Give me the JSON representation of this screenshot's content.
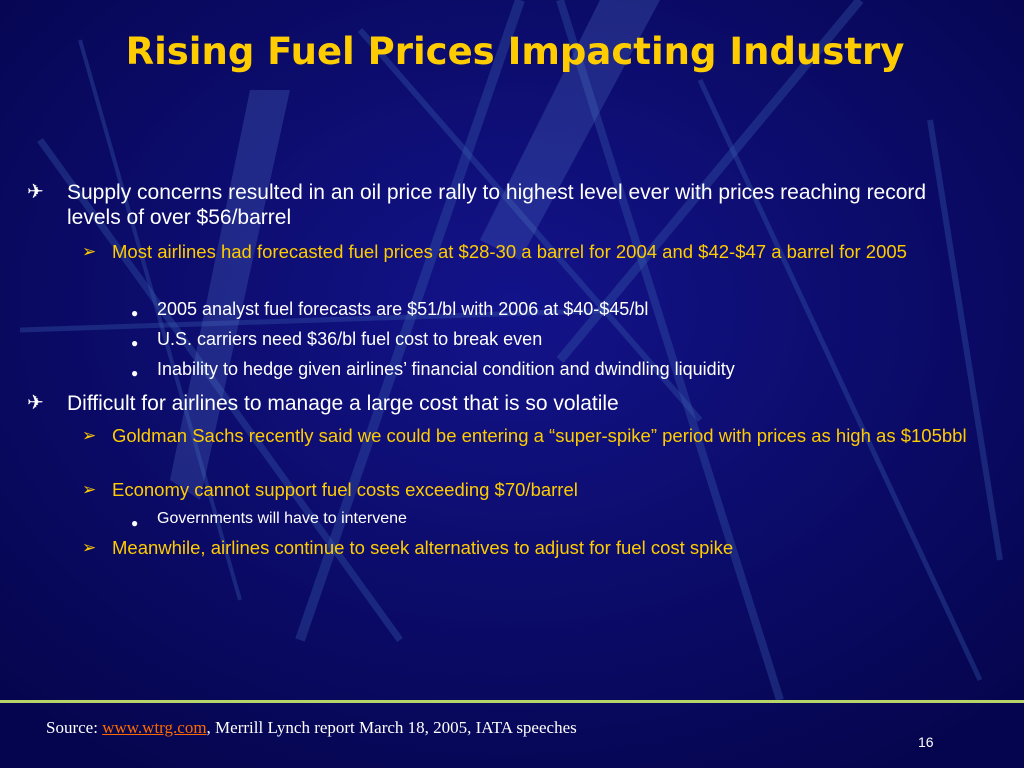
{
  "slide": {
    "title": "Rising Fuel Prices Impacting Industry",
    "bullets": {
      "b1": "Supply concerns resulted in an oil price rally to highest level ever with prices reaching record levels of over $56/barrel",
      "b1_1": "Most airlines had forecasted fuel prices at $28-30 a barrel for 2004 and $42-$47 a barrel for 2005",
      "b1_1_1": "2005 analyst fuel forecasts are $51/bl with 2006 at $40-$45/bl",
      "b1_1_2": "U.S. carriers need $36/bl fuel cost to break even",
      "b1_1_3": "Inability to hedge given airlines’ financial condition and dwindling liquidity",
      "b2": "Difficult for airlines to manage a large cost that is so volatile",
      "b2_1": "Goldman Sachs recently said we could be entering a “super-spike” period with prices as high as $105bbl",
      "b2_2": "Economy cannot support fuel costs exceeding $70/barrel",
      "b2_2_1": "Governments will have to intervene",
      "b2_3": "Meanwhile, airlines continue to seek alternatives to adjust for fuel cost spike"
    },
    "markers": {
      "level1": "✈",
      "level2": "➢",
      "level3": "●"
    },
    "footer": {
      "source_label": "Source:",
      "source_link": "www.wtrg.com",
      "source_rest": ",  Merrill Lynch report March 18, 2005, IATA speeches",
      "page_number": "16"
    }
  },
  "colors": {
    "background": "#0a0a6e",
    "title": "#ffcc00",
    "level2_text": "#ffcc00",
    "link": "#ff6a00",
    "footer_line": "#b7d46a"
  }
}
